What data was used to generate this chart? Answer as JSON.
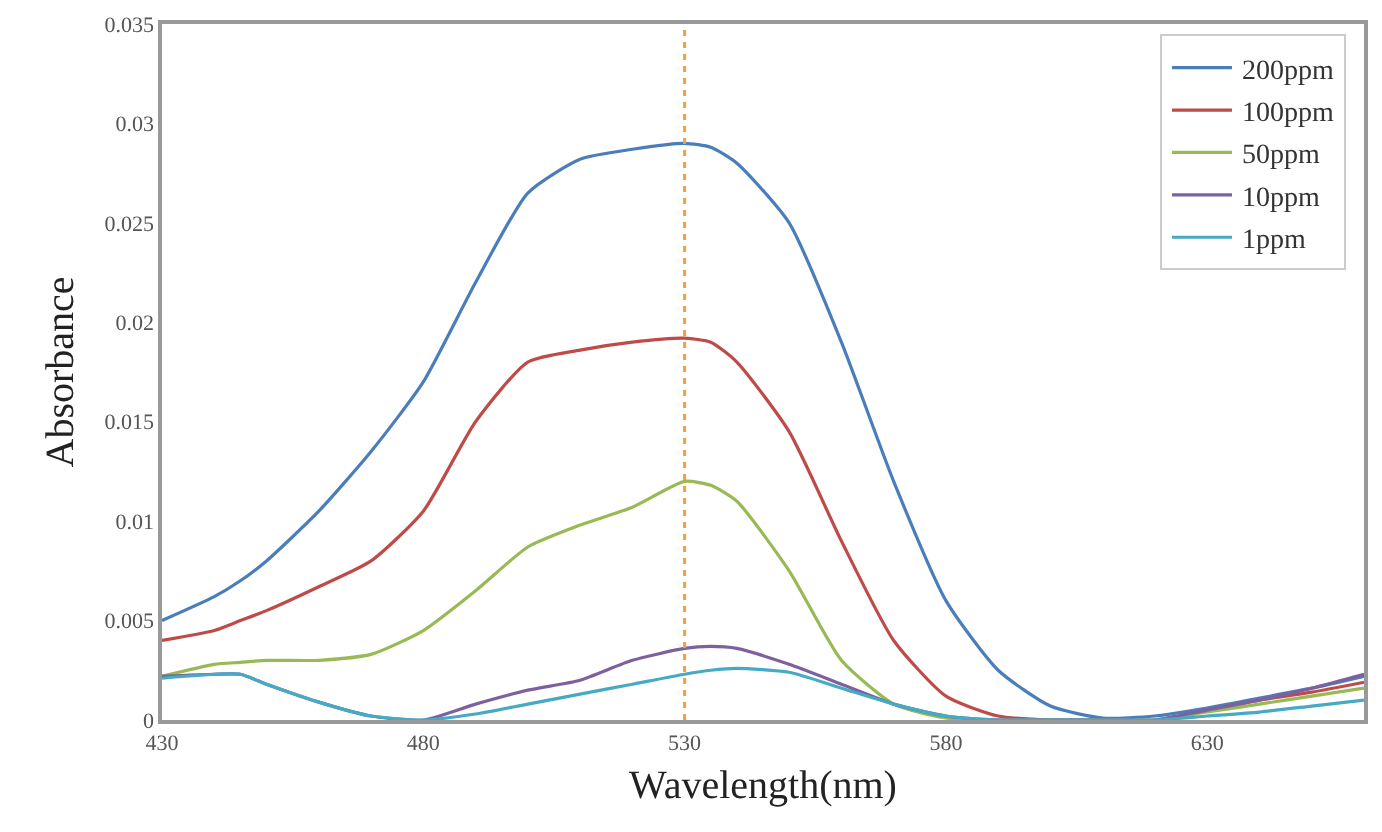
{
  "chart_data": {
    "type": "line",
    "xlabel": "Wavelength(nm)",
    "ylabel": "Absorbance",
    "x": [
      430,
      440,
      445,
      450,
      460,
      470,
      480,
      490,
      500,
      510,
      520,
      530,
      535,
      540,
      550,
      560,
      570,
      580,
      590,
      600,
      610,
      620,
      630,
      640,
      650,
      660
    ],
    "series": [
      {
        "name": "200ppm",
        "color": "#4a7ebb",
        "values": [
          0.005,
          0.0062,
          0.007,
          0.008,
          0.0105,
          0.0135,
          0.017,
          0.022,
          0.0265,
          0.0282,
          0.0287,
          0.029,
          0.0288,
          0.028,
          0.025,
          0.019,
          0.012,
          0.006,
          0.0025,
          0.0007,
          0.0001,
          0.0002,
          0.0006,
          0.0011,
          0.0016,
          0.0022
        ]
      },
      {
        "name": "100ppm",
        "color": "#be4b48",
        "values": [
          0.004,
          0.0045,
          0.005,
          0.0055,
          0.0067,
          0.008,
          0.0105,
          0.015,
          0.018,
          0.0186,
          0.019,
          0.0192,
          0.019,
          0.018,
          0.0145,
          0.009,
          0.004,
          0.0012,
          0.0002,
          0,
          0,
          0,
          0.0005,
          0.001,
          0.0014,
          0.0019
        ]
      },
      {
        "name": "50ppm",
        "color": "#98b954",
        "values": [
          0.0022,
          0.0028,
          0.0029,
          0.003,
          0.003,
          0.0033,
          0.0045,
          0.0065,
          0.0087,
          0.0098,
          0.0107,
          0.012,
          0.0118,
          0.011,
          0.0075,
          0.003,
          0.0008,
          0.0001,
          0,
          0,
          0,
          0,
          0.0004,
          0.0008,
          0.0012,
          0.0016
        ]
      },
      {
        "name": "10ppm",
        "color": "#7d60a0",
        "values": [
          0.0022,
          0.0023,
          0.0023,
          0.0018,
          0.0009,
          0.0002,
          0,
          0.0008,
          0.0015,
          0.002,
          0.003,
          0.0036,
          0.0037,
          0.0036,
          0.0028,
          0.0018,
          0.0008,
          0.0002,
          0,
          0,
          0,
          0,
          0.0005,
          0.001,
          0.0016,
          0.0023
        ]
      },
      {
        "name": "1ppm",
        "color": "#46aac5",
        "values": [
          0.0021,
          0.0023,
          0.0023,
          0.0018,
          0.0009,
          0.0002,
          0,
          0.0003,
          0.0008,
          0.0013,
          0.0018,
          0.0023,
          0.0025,
          0.0026,
          0.0024,
          0.0016,
          0.0008,
          0.0002,
          0,
          0,
          0,
          0,
          0.0002,
          0.0004,
          0.0007,
          0.001
        ]
      }
    ],
    "xlim": [
      430,
      660
    ],
    "xticks": [
      430,
      480,
      530,
      580,
      630
    ],
    "ylim": [
      0,
      0.035
    ],
    "yticks": [
      0,
      0.005,
      0.01,
      0.015,
      0.02,
      0.025,
      0.03,
      0.035
    ],
    "ref_lines": [
      {
        "axis": "x",
        "value": 530,
        "color": "#f0a040",
        "line_style": "dotted"
      }
    ],
    "grid": false,
    "legend": "top right",
    "marker": "none",
    "line_style": "solid"
  }
}
